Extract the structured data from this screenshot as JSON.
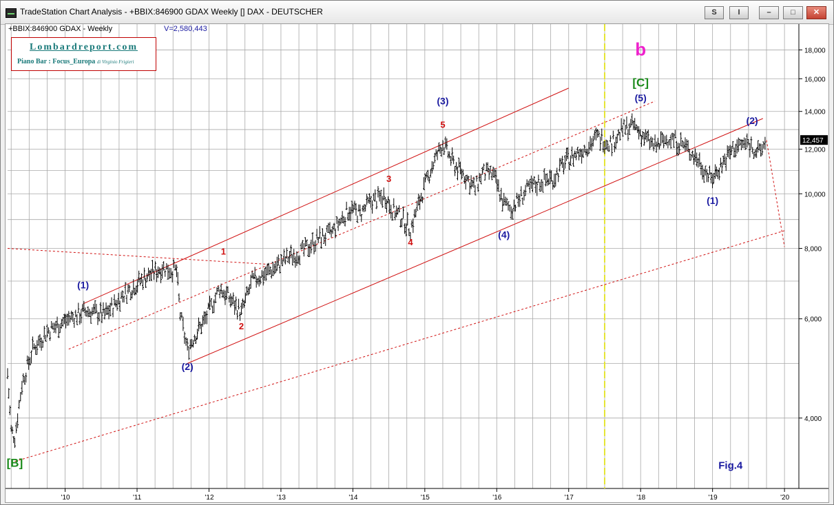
{
  "window": {
    "title": "TradeStation Chart Analysis - +BBIX:846900 GDAX Weekly [] DAX - DEUTSCHER",
    "buttons": {
      "s": "S",
      "i": "I"
    }
  },
  "chart_header": {
    "symbol": "+BBIX:846900 GDAX - Weekly",
    "volume": "V=2,580,443"
  },
  "logo": {
    "main": "Lombardreport.com",
    "sub": "Piano Bar : Focus_Europa",
    "sub_small": "di Virginio Frigieri"
  },
  "chart_data": {
    "type": "line",
    "title": "",
    "x_tick_labels": [
      "'10",
      "'11",
      "'12",
      "'13",
      "'14",
      "'15",
      "'16",
      "'17",
      "'18",
      "'19",
      "'20"
    ],
    "y_tick_labels": [
      "18,000",
      "16,000",
      "14,000",
      "12,000",
      "10,000",
      "8,000",
      "6,000",
      "4,000"
    ],
    "y_ticks": [
      18000,
      16000,
      14000,
      12000,
      10000,
      8000,
      6000,
      4000
    ],
    "y_scale": "log",
    "ylim": [
      3000,
      20000
    ],
    "xlim": [
      2009.2,
      2020.2
    ],
    "last_price_label": "12,457",
    "grid": true,
    "series": [
      {
        "type": "ohlc",
        "x": [
          2009.2,
          2009.25,
          2009.3,
          2009.4,
          2009.55,
          2009.75,
          2009.95,
          2010.05,
          2010.3,
          2010.55,
          2010.8,
          2011.1,
          2011.35,
          2011.55,
          2011.6,
          2011.7,
          2011.8,
          2011.95,
          2012.15,
          2012.3,
          2012.45,
          2012.6,
          2012.85,
          2013.1,
          2013.3,
          2013.5,
          2013.7,
          2013.95,
          2014.1,
          2014.25,
          2014.45,
          2014.55,
          2014.7,
          2014.8,
          2014.95,
          2015.1,
          2015.25,
          2015.4,
          2015.55,
          2015.7,
          2015.8,
          2015.95,
          2016.1,
          2016.2,
          2016.4,
          2016.6,
          2016.8,
          2016.95,
          2017.2,
          2017.4,
          2017.6,
          2017.75,
          2017.9,
          2018.05,
          2018.2,
          2018.4,
          2018.6,
          2018.8,
          2018.98,
          2019.15,
          2019.3,
          2019.5,
          2019.65,
          2019.75
        ],
        "y": [
          4800,
          3800,
          3700,
          4600,
          5300,
          5700,
          5900,
          6000,
          6200,
          6100,
          6600,
          7100,
          7400,
          7300,
          6100,
          5300,
          5600,
          6000,
          6800,
          6500,
          6150,
          7000,
          7300,
          7700,
          7900,
          8300,
          8500,
          9400,
          9200,
          9700,
          9900,
          9400,
          9000,
          8650,
          9900,
          11200,
          12300,
          11300,
          10800,
          10200,
          10900,
          10800,
          9600,
          9400,
          10100,
          10500,
          10700,
          11400,
          12000,
          12600,
          12300,
          13000,
          13200,
          12600,
          12100,
          12600,
          12200,
          11500,
          10600,
          11400,
          12100,
          12300,
          11800,
          12457
        ]
      }
    ],
    "annotations": [
      {
        "text": "[B]",
        "x": 2009.3,
        "y": 3280,
        "color": "#1a8a1a"
      },
      {
        "text": "(1)",
        "x": 2010.25,
        "y": 6800,
        "color": "#1a1aa0"
      },
      {
        "text": "(2)",
        "x": 2011.7,
        "y": 4870,
        "color": "#1a1aa0"
      },
      {
        "text": "1",
        "x": 2012.2,
        "y": 7800,
        "color": "#d01010"
      },
      {
        "text": "2",
        "x": 2012.45,
        "y": 5750,
        "color": "#d01010"
      },
      {
        "text": "3",
        "x": 2014.5,
        "y": 10500,
        "color": "#d01010"
      },
      {
        "text": "4",
        "x": 2014.8,
        "y": 8100,
        "color": "#d01010"
      },
      {
        "text": "5",
        "x": 2015.25,
        "y": 13100,
        "color": "#d01010"
      },
      {
        "text": "(3)",
        "x": 2015.25,
        "y": 14400,
        "color": "#1a1aa0"
      },
      {
        "text": "(4)",
        "x": 2016.1,
        "y": 8350,
        "color": "#1a1aa0"
      },
      {
        "text": "b",
        "x": 2018.0,
        "y": 17600,
        "color": "#ee22cc"
      },
      {
        "text": "[C]",
        "x": 2018.0,
        "y": 15500,
        "color": "#1a8a1a"
      },
      {
        "text": "(5)",
        "x": 2018.0,
        "y": 14600,
        "color": "#1a1aa0"
      },
      {
        "text": "(2)",
        "x": 2019.55,
        "y": 13300,
        "color": "#1a1aa0"
      },
      {
        "text": "(1)",
        "x": 2019.0,
        "y": 9600,
        "color": "#1a1aa0"
      },
      {
        "text": "Fig.4",
        "x": 2019.25,
        "y": 3250,
        "color": "#1a1aa0"
      }
    ],
    "vertical_marker_x": 2017.5
  }
}
